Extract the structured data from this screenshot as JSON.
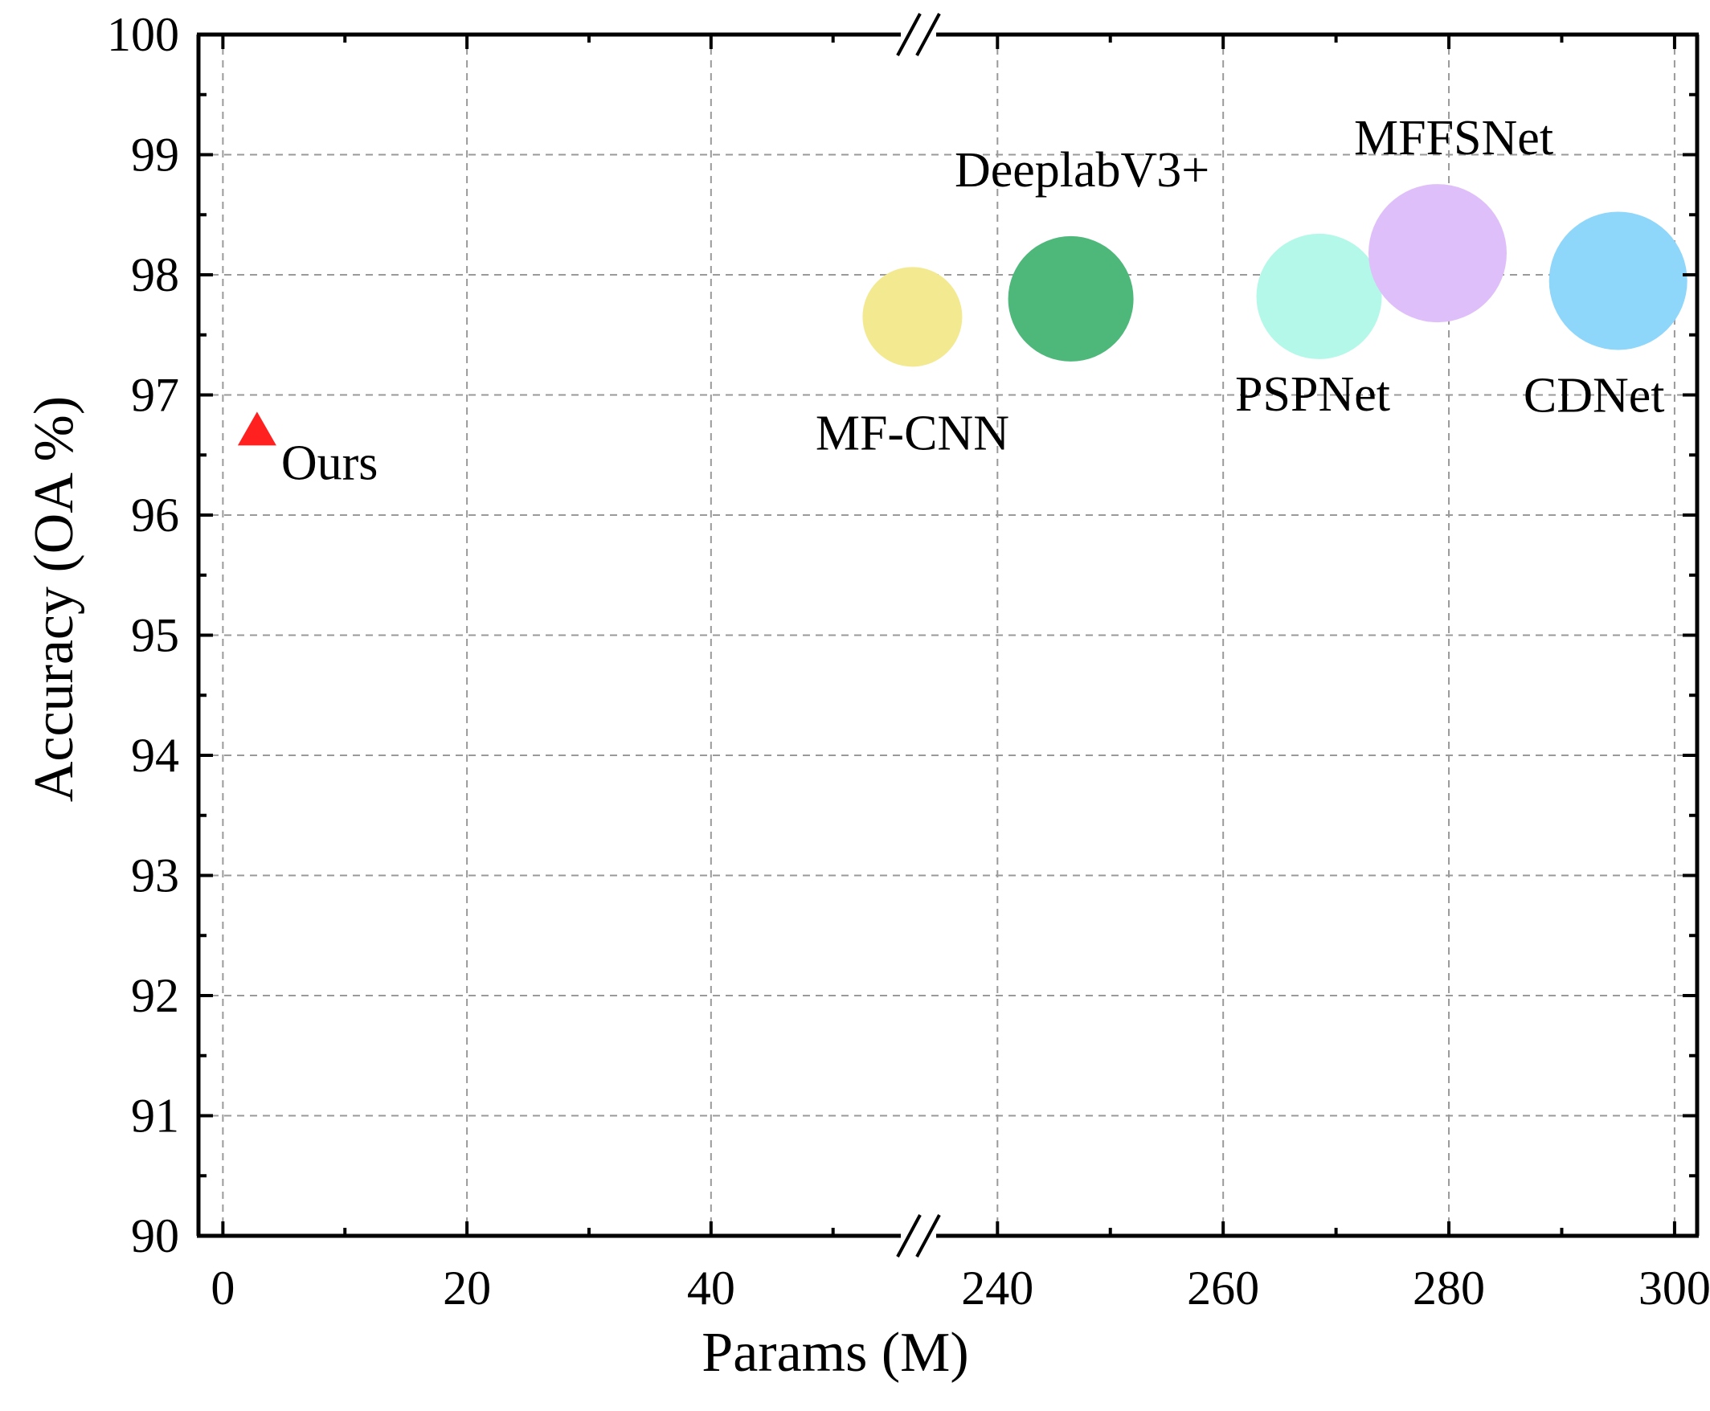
{
  "chart_data": {
    "type": "scatter",
    "title": "",
    "xlabel": "Params (M)",
    "ylabel": "Accuracy (OA %)",
    "x_axis_break": {
      "from": 57,
      "to": 233
    },
    "x_segments": [
      {
        "range": [
          -2,
          57
        ],
        "ticks": [
          0,
          20,
          40
        ]
      },
      {
        "range": [
          233,
          302
        ],
        "ticks": [
          240,
          260,
          280,
          300
        ]
      }
    ],
    "ylim": [
      90,
      100
    ],
    "yticks": [
      90,
      91,
      92,
      93,
      94,
      95,
      96,
      97,
      98,
      99,
      100
    ],
    "grid": true,
    "points": [
      {
        "name": "Ours",
        "x": 2.8,
        "y": 96.7,
        "marker": "triangle",
        "color": "#ff2020"
      },
      {
        "name": "MF-CNN",
        "x": 56.5,
        "y": 97.65,
        "marker": "bubble",
        "color": "#f3e990"
      },
      {
        "name": "DeeplabV3+",
        "x": 246.5,
        "y": 97.8,
        "marker": "bubble",
        "color": "#4db87a"
      },
      {
        "name": "PSPNet",
        "x": 268.5,
        "y": 97.82,
        "marker": "bubble",
        "color": "#b3f8e8"
      },
      {
        "name": "MFFSNet",
        "x": 279,
        "y": 98.18,
        "marker": "bubble",
        "color": "#dfbff9"
      },
      {
        "name": "CDNet",
        "x": 295,
        "y": 97.95,
        "marker": "bubble",
        "color": "#8fd6fb"
      }
    ]
  }
}
